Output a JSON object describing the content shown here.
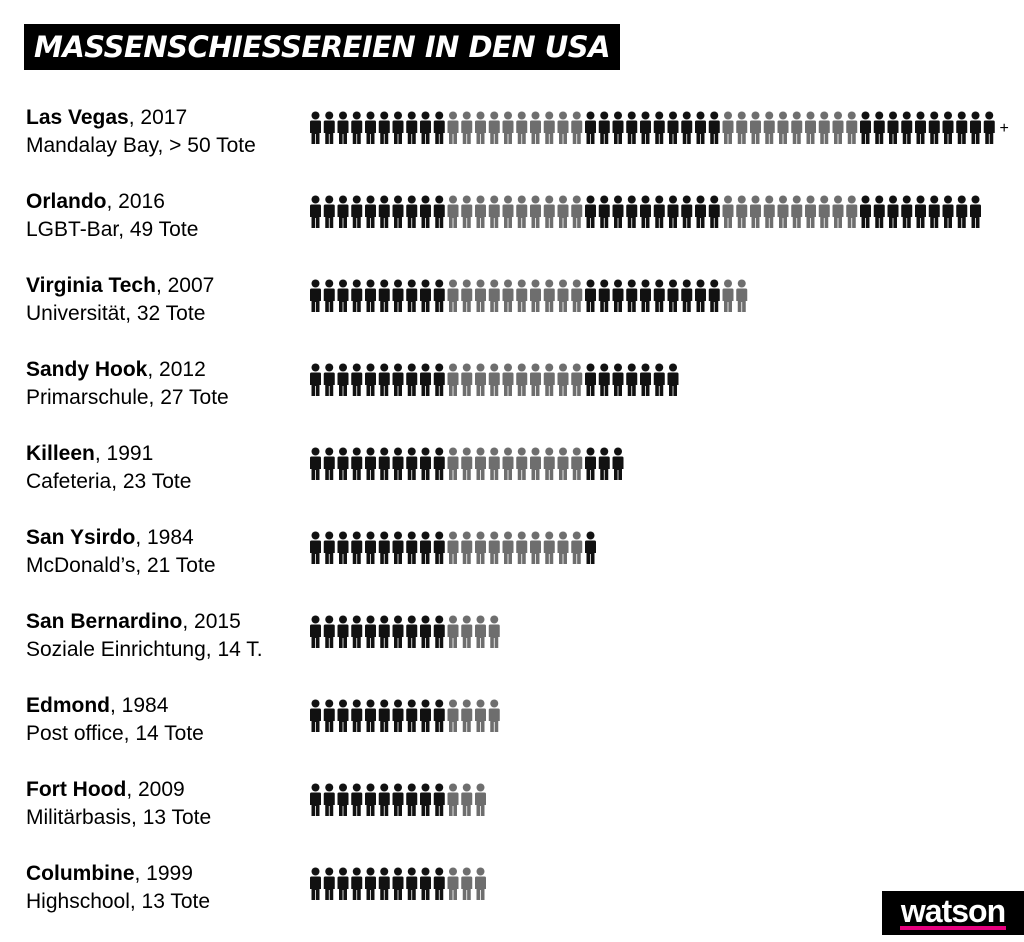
{
  "header": {
    "title": "MASSENSCHIESSEREIEN IN DEN USA"
  },
  "logo": {
    "text": "watson"
  },
  "colors": {
    "dark": "#111111",
    "grey": "#6e6e6e",
    "accent": "#e6007e"
  },
  "chart_data": {
    "type": "pictogram",
    "unit": "Tote",
    "group_size": 10,
    "rows": [
      {
        "name": "Las Vegas",
        "year": ", 2017",
        "detail": "Mandalay Bay, > 50 Tote",
        "value": 50,
        "plus": "+"
      },
      {
        "name": "Orlando",
        "year": ", 2016",
        "detail": "LGBT-Bar, 49 Tote",
        "value": 49
      },
      {
        "name": "Virginia Tech",
        "year": ", 2007",
        "detail": "Universität, 32 Tote",
        "value": 32
      },
      {
        "name": "Sandy Hook",
        "year": ", 2012",
        "detail": "Primarschule, 27 Tote",
        "value": 27
      },
      {
        "name": "Killeen",
        "year": ", 1991",
        "detail": "Cafeteria, 23 Tote",
        "value": 23
      },
      {
        "name": "San Ysirdo",
        "year": ", 1984",
        "detail": "McDonald’s, 21 Tote",
        "value": 21
      },
      {
        "name": "San Bernardino",
        "year": ", 2015",
        "detail": "Soziale Einrichtung, 14 T.",
        "value": 14
      },
      {
        "name": "Edmond",
        "year": ", 1984",
        "detail": "Post office, 14 Tote",
        "value": 14
      },
      {
        "name": "Fort Hood",
        "year": ", 2009",
        "detail": "Militärbasis, 13 Tote",
        "value": 13
      },
      {
        "name": "Columbine",
        "year": ", 1999",
        "detail": "Highschool, 13 Tote",
        "value": 13
      }
    ]
  }
}
